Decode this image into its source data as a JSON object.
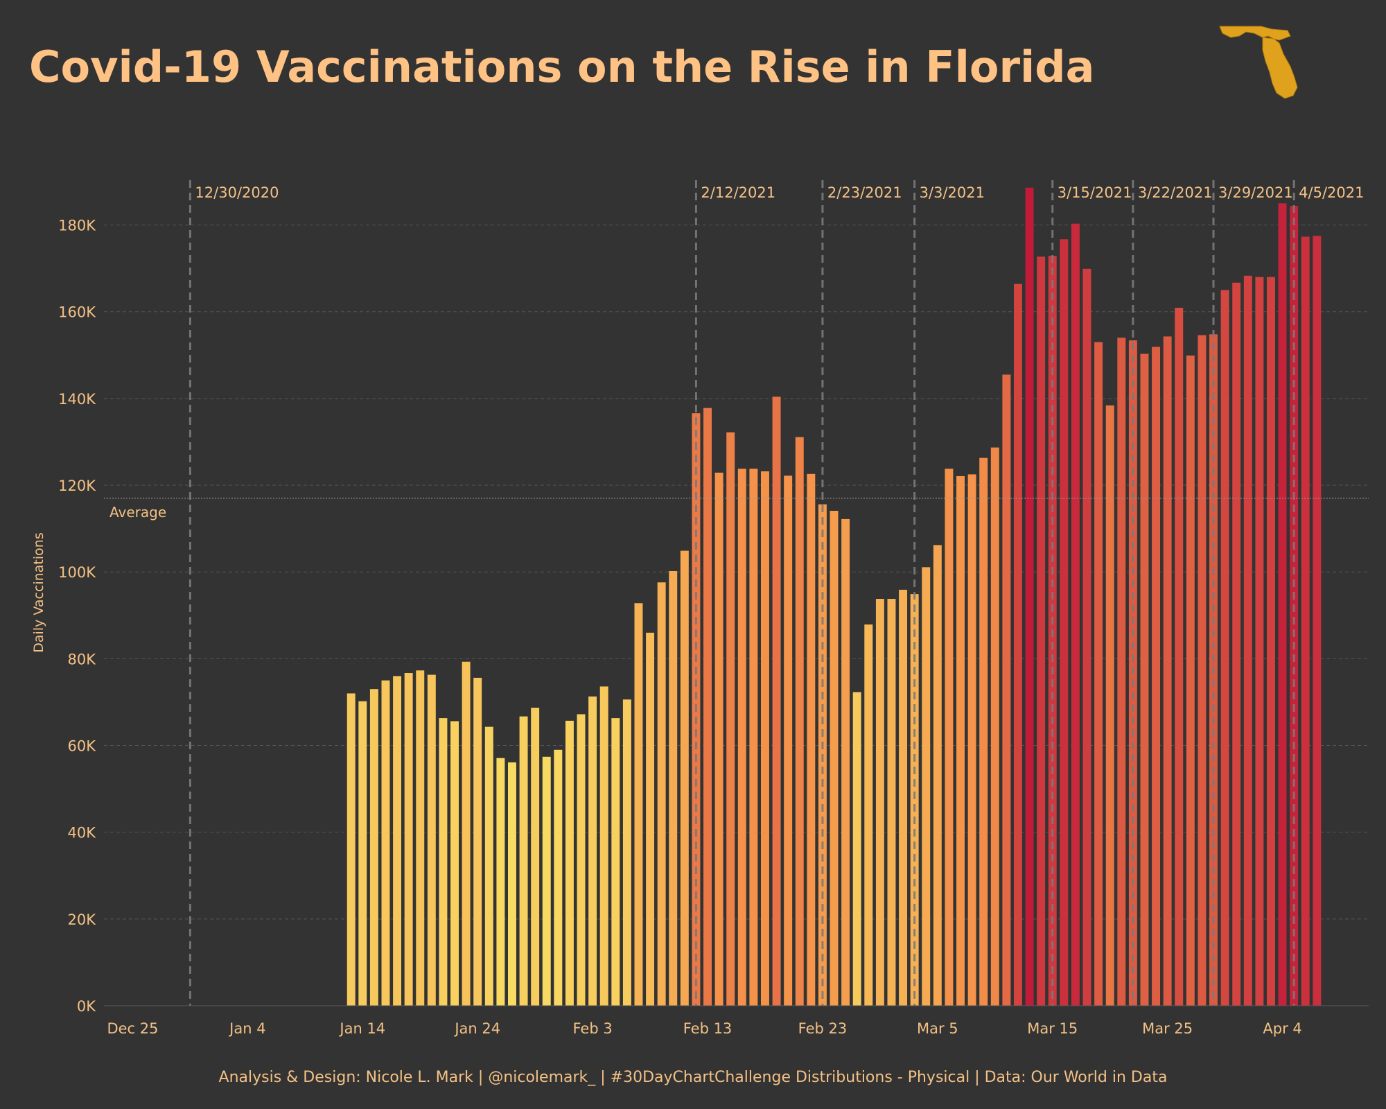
{
  "chart_data": {
    "type": "bar",
    "title": "Covid-19 Vaccinations on the Rise in Florida",
    "ylabel": "Daily Vaccinations",
    "ylim": [
      0,
      190000
    ],
    "y_ticks": [
      {
        "value": 0,
        "label": "0K"
      },
      {
        "value": 20000,
        "label": "20K"
      },
      {
        "value": 40000,
        "label": "40K"
      },
      {
        "value": 60000,
        "label": "60K"
      },
      {
        "value": 80000,
        "label": "80K"
      },
      {
        "value": 100000,
        "label": "100K"
      },
      {
        "value": 120000,
        "label": "120K"
      },
      {
        "value": 140000,
        "label": "140K"
      },
      {
        "value": 160000,
        "label": "160K"
      },
      {
        "value": 180000,
        "label": "180K"
      }
    ],
    "x_range": [
      "2020-12-23",
      "2021-04-12"
    ],
    "x_ticks": [
      {
        "date": "2020-12-25",
        "label": "Dec 25"
      },
      {
        "date": "2021-01-04",
        "label": "Jan 4"
      },
      {
        "date": "2021-01-14",
        "label": "Jan 14"
      },
      {
        "date": "2021-01-24",
        "label": "Jan 24"
      },
      {
        "date": "2021-02-03",
        "label": "Feb 3"
      },
      {
        "date": "2021-02-13",
        "label": "Feb 13"
      },
      {
        "date": "2021-02-23",
        "label": "Feb 23"
      },
      {
        "date": "2021-03-05",
        "label": "Mar 5"
      },
      {
        "date": "2021-03-15",
        "label": "Mar 15"
      },
      {
        "date": "2021-03-25",
        "label": "Mar 25"
      },
      {
        "date": "2021-04-04",
        "label": "Apr 4"
      }
    ],
    "first_date": "2021-01-13",
    "values": [
      72000,
      70200,
      73000,
      75000,
      76000,
      76700,
      77300,
      76300,
      66300,
      65600,
      79300,
      75600,
      64300,
      57100,
      56100,
      66700,
      68700,
      57400,
      59000,
      65700,
      67200,
      71300,
      73600,
      66300,
      70600,
      92800,
      86000,
      97600,
      100200,
      104900,
      136600,
      137800,
      122900,
      132200,
      123800,
      123800,
      123200,
      140400,
      122200,
      131100,
      122600,
      115600,
      114100,
      112200,
      72300,
      87900,
      93800,
      93800,
      95900,
      94900,
      101100,
      106200,
      123800,
      122100,
      122500,
      126300,
      128700,
      145500,
      166400,
      188600,
      172700,
      172900,
      176700,
      180300,
      169900,
      153000,
      138400,
      154000,
      153400,
      150300,
      151900,
      154300,
      160900,
      149900,
      154600,
      154800,
      165000,
      166700,
      168300,
      168000,
      168000,
      185000,
      184400,
      177300,
      177500
    ],
    "average": 117000,
    "average_label": "Average",
    "reference_lines": [
      {
        "date": "2020-12-30",
        "label": "12/30/2020"
      },
      {
        "date": "2021-02-12",
        "label": "2/12/2021"
      },
      {
        "date": "2021-02-23",
        "label": "2/23/2021"
      },
      {
        "date": "2021-03-03",
        "label": "3/3/2021"
      },
      {
        "date": "2021-03-15",
        "label": "3/15/2021"
      },
      {
        "date": "2021-03-22",
        "label": "3/22/2021"
      },
      {
        "date": "2021-03-29",
        "label": "3/29/2021"
      },
      {
        "date": "2021-04-05",
        "label": "4/5/2021"
      }
    ],
    "colors": {
      "low": "#F8DB63",
      "mid": "#F5944A",
      "high": "#C21B3A",
      "background": "#333333",
      "gridline": "#555555",
      "reference_line": "#7A7A7A",
      "text": "#F3C186",
      "title": "#FFC285",
      "logo": "#E0A21C"
    },
    "grid": true,
    "legend": "none"
  },
  "footer": "Analysis & Design: Nicole L. Mark | @nicolemark_ | #30DayChartChallenge Distributions - Physical | Data:  Our World in Data",
  "logo_icon": "florida-state-icon"
}
